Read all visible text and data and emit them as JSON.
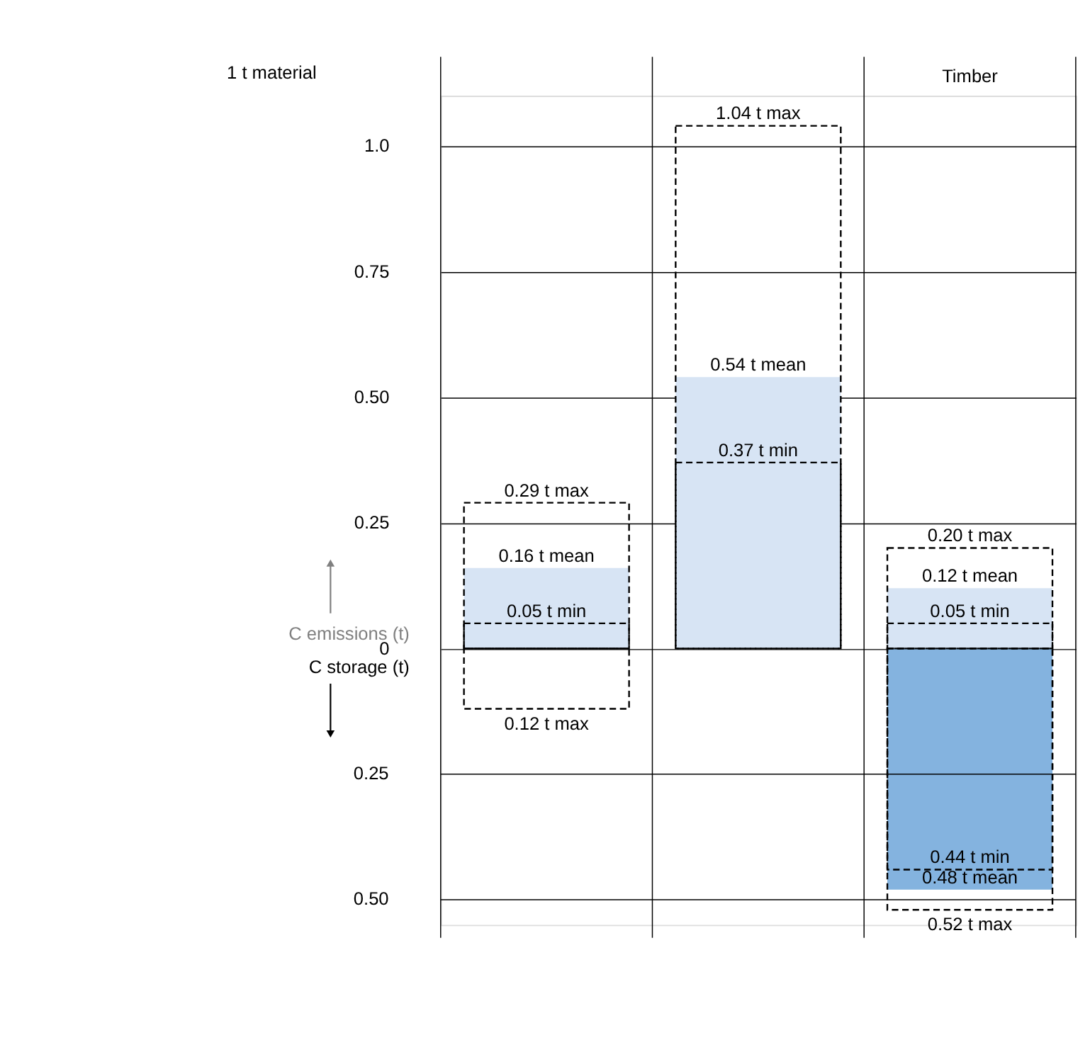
{
  "chart_data": {
    "type": "bar",
    "categories": [
      null,
      null,
      "Timber"
    ],
    "series": [
      {
        "color": "#d7e4f4",
        "values": [
          0.16,
          0.54,
          0.12
        ],
        "value_labels": [
          "0.16 t mean",
          "0.54 t mean",
          "0.12 t mean"
        ]
      },
      {
        "color": "#84b3df",
        "axis": "y2",
        "values": [
          null,
          null,
          0.48
        ],
        "value_labels": [
          null,
          null,
          "0.48 t mean"
        ]
      },
      {
        "type": "bar",
        "color": "#000000",
        "line_style": "dashed",
        "values": [
          0.29,
          1.04,
          0.2
        ],
        "value_labels": [
          "0.29 t max",
          "1.04 t max",
          "0.20 t max"
        ]
      },
      {
        "type": "bar",
        "color": "#000000",
        "line_style": "dashed",
        "axis": "y2",
        "values": [
          0.12,
          null,
          0.52
        ],
        "value_labels": [
          "0.12 t max",
          null,
          "0.52 t max"
        ]
      },
      {
        "type": "bar",
        "color": "#000000",
        "line_style": "dashed",
        "values": [
          0.05,
          0.37,
          0.05
        ],
        "value_labels": [
          "0.05 t min",
          "0.37 t min",
          "0.05 t min"
        ]
      },
      {
        "type": "bar",
        "color": "#000000",
        "line_style": "dashed",
        "axis": "y2",
        "values": [
          null,
          null,
          0.44
        ],
        "value_labels": [
          null,
          null,
          "0.44 t min"
        ]
      }
    ],
    "ylim": [
      -0.55,
      1.1
    ],
    "yticks": [
      0,
      0.25,
      {
        "value": 0.5,
        "label": "0.50"
      },
      0.75,
      {
        "value": 1.0,
        "label": "1.0"
      }
    ],
    "y2lim": [
      0.55,
      -1.1
    ],
    "y2ticks": [
      0.25,
      {
        "value": 0.5,
        "label": "0.50"
      }
    ],
    "grid": true,
    "annotations": [
      "1 t material",
      "C emissions (t)",
      "C storage (t)"
    ]
  }
}
